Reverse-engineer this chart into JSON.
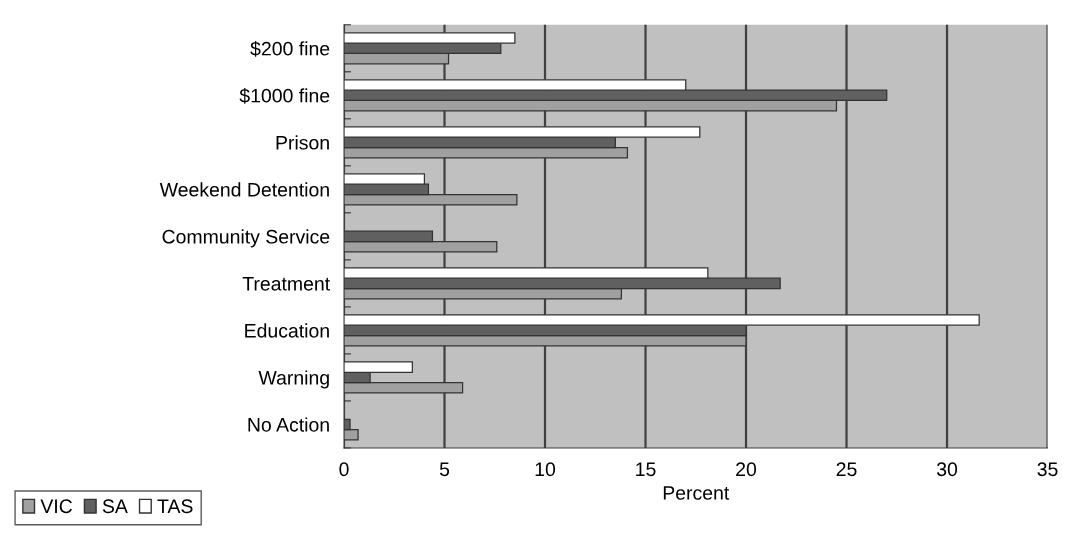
{
  "chart_data": {
    "type": "bar",
    "orientation": "horizontal",
    "xlabel": "Percent",
    "categories": [
      "$200 fine",
      "$1000 fine",
      "Prison",
      "Weekend Detention",
      "Community Service",
      "Treatment",
      "Education",
      "Warning",
      "No Action"
    ],
    "series": [
      {
        "name": "VIC",
        "color": "#a0a0a0",
        "values": [
          5.2,
          24.5,
          14.1,
          8.6,
          7.6,
          13.8,
          20.0,
          5.9,
          0.7
        ]
      },
      {
        "name": "SA",
        "color": "#606060",
        "values": [
          7.8,
          27.0,
          13.5,
          4.2,
          4.4,
          21.7,
          20.0,
          1.3,
          0.3
        ]
      },
      {
        "name": "TAS",
        "color": "#ffffff",
        "values": [
          8.5,
          17.0,
          17.7,
          4.0,
          null,
          18.1,
          31.6,
          3.4,
          null
        ]
      }
    ],
    "xlim": [
      0,
      35
    ],
    "xticks": [
      0,
      5,
      10,
      15,
      20,
      25,
      30,
      35
    ],
    "grid": "x",
    "legend": "bottom left"
  }
}
